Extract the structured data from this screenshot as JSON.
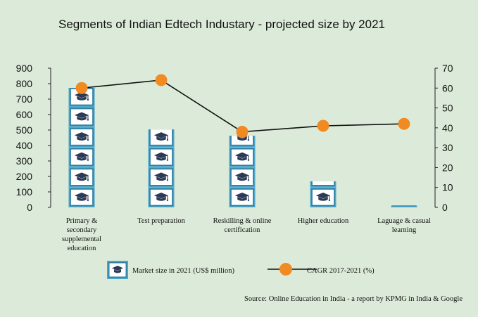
{
  "chart_data": {
    "type": "bar",
    "title": "Segments of Indian Edtech Industary - projected size by 2021",
    "categories": [
      [
        "Primary &",
        "secondary",
        "supplemental",
        "education"
      ],
      [
        "Test preparation"
      ],
      [
        "Reskilling & online",
        "certification"
      ],
      [
        "Higher education"
      ],
      [
        "Laguage & casual",
        "learning"
      ]
    ],
    "series": [
      {
        "name": "Market size in 2021 (US$ million)",
        "type": "bar",
        "axis": "left",
        "values": [
          773,
          504,
          463,
          168,
          12
        ]
      },
      {
        "name": "CAGR 2017-2021 (%)",
        "type": "line",
        "axis": "right",
        "values": [
          60,
          64,
          38,
          41,
          42
        ]
      }
    ],
    "y_left": {
      "ylim": [
        0,
        900
      ],
      "ticks": [
        0,
        100,
        200,
        300,
        400,
        500,
        600,
        700,
        800,
        900
      ]
    },
    "y_right": {
      "ylim": [
        0,
        70
      ],
      "ticks": [
        0,
        10,
        20,
        30,
        40,
        50,
        60,
        70
      ]
    },
    "grid": false,
    "legend": "bottom",
    "source": "Source: Online Education in India - a report by KPMG in India & Google",
    "colors": {
      "background": "#dcebd9",
      "tile_frame": "#4da6c8",
      "tile_fill": "#ffffff",
      "cap": "#2b3a55",
      "line": "#111111",
      "marker": "#f28a22"
    },
    "icon": "graduation-cap-screen-icon"
  }
}
